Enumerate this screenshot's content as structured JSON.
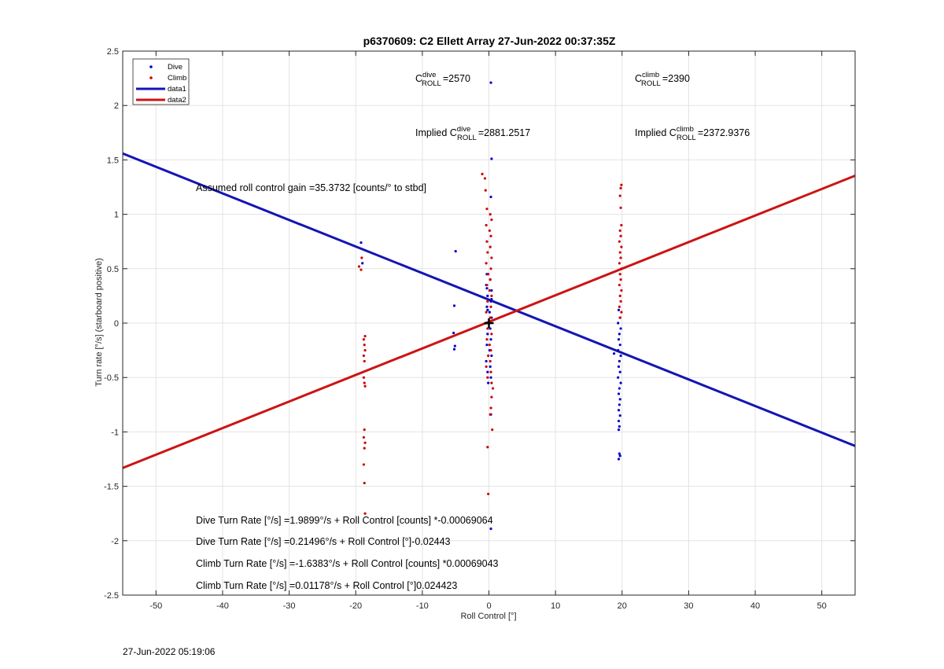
{
  "chart_data": {
    "type": "scatter",
    "title": "p6370609: C2 Ellett Array 27-Jun-2022 00:37:35Z",
    "xlabel": "Roll Control [°]",
    "ylabel": "Turn rate [°/s] (starboard positive)",
    "xlim": [
      -55,
      55
    ],
    "ylim": [
      -2.5,
      2.5
    ],
    "xticks": [
      -50,
      -40,
      -30,
      -20,
      -10,
      0,
      10,
      20,
      30,
      40,
      50
    ],
    "yticks": [
      -2.5,
      -2,
      -1.5,
      -1,
      -0.5,
      0,
      0.5,
      1,
      1.5,
      2,
      2.5
    ],
    "grid": true,
    "legend_position": "top-left",
    "colors": {
      "dive": "#0000cc",
      "climb": "#cc0000",
      "data1": "#1414b4",
      "data2": "#cc1414",
      "marker": "#000000"
    },
    "legend": [
      {
        "label": "Dive",
        "kind": "point",
        "color": "#0000cc"
      },
      {
        "label": "Climb",
        "kind": "point",
        "color": "#cc0000"
      },
      {
        "label": "data1",
        "kind": "line",
        "color": "#1414b4"
      },
      {
        "label": "data2",
        "kind": "line",
        "color": "#cc1414"
      }
    ],
    "lines": [
      {
        "name": "data1",
        "slope": -0.02443,
        "intercept": 0.21496
      },
      {
        "name": "data2",
        "slope": 0.024423,
        "intercept": 0.01178
      }
    ],
    "center_marker": {
      "x": 0,
      "y": 0
    },
    "series": [
      {
        "name": "Dive",
        "points": [
          [
            0.3,
            2.21
          ],
          [
            0.4,
            1.51
          ],
          [
            0.3,
            1.16
          ],
          [
            -19.2,
            0.74
          ],
          [
            -19.0,
            0.55
          ],
          [
            -5.0,
            0.66
          ],
          [
            -5.2,
            0.16
          ],
          [
            -5.3,
            -0.09
          ],
          [
            -5.1,
            -0.21
          ],
          [
            -5.2,
            -0.24
          ],
          [
            0.3,
            -0.84
          ],
          [
            0.3,
            -1.89
          ],
          [
            -0.3,
            0.45
          ],
          [
            0.2,
            0.4
          ],
          [
            -0.4,
            0.35
          ],
          [
            0.4,
            0.3
          ],
          [
            -0.2,
            0.25
          ],
          [
            0.3,
            0.2
          ],
          [
            -0.3,
            0.15
          ],
          [
            0.1,
            0.1
          ],
          [
            0.4,
            0.05
          ],
          [
            -0.4,
            0.0
          ],
          [
            0.2,
            -0.05
          ],
          [
            -0.2,
            -0.1
          ],
          [
            0.3,
            -0.15
          ],
          [
            -0.3,
            -0.2
          ],
          [
            0.1,
            -0.25
          ],
          [
            0.4,
            -0.3
          ],
          [
            -0.4,
            -0.35
          ],
          [
            0.2,
            -0.4
          ],
          [
            -0.2,
            -0.45
          ],
          [
            0.3,
            -0.5
          ],
          [
            -0.1,
            -0.55
          ],
          [
            -0.3,
            0.32
          ],
          [
            0.4,
            0.22
          ],
          [
            -0.2,
            0.12
          ],
          [
            19.5,
            0.12
          ],
          [
            19.7,
            0.05
          ],
          [
            19.4,
            0.0
          ],
          [
            19.8,
            -0.05
          ],
          [
            19.6,
            -0.1
          ],
          [
            19.5,
            -0.15
          ],
          [
            19.7,
            -0.2
          ],
          [
            19.4,
            -0.25
          ],
          [
            19.8,
            -0.3
          ],
          [
            19.6,
            -0.35
          ],
          [
            19.5,
            -0.4
          ],
          [
            19.7,
            -0.45
          ],
          [
            19.4,
            -0.5
          ],
          [
            19.8,
            -0.55
          ],
          [
            19.6,
            -0.6
          ],
          [
            19.5,
            -0.65
          ],
          [
            19.7,
            -0.7
          ],
          [
            19.6,
            -0.75
          ],
          [
            19.5,
            -0.8
          ],
          [
            19.7,
            -0.85
          ],
          [
            19.5,
            -0.9
          ],
          [
            19.6,
            -0.95
          ],
          [
            19.5,
            -0.98
          ],
          [
            19.6,
            -1.2
          ],
          [
            19.7,
            -1.22
          ],
          [
            19.5,
            -1.25
          ],
          [
            18.8,
            -0.28
          ]
        ]
      },
      {
        "name": "Climb",
        "points": [
          [
            -1.0,
            1.37
          ],
          [
            -0.6,
            1.33
          ],
          [
            -0.5,
            1.22
          ],
          [
            -0.3,
            1.05
          ],
          [
            0.2,
            1.0
          ],
          [
            0.4,
            0.95
          ],
          [
            -0.4,
            0.9
          ],
          [
            0.1,
            0.85
          ],
          [
            0.3,
            0.8
          ],
          [
            -0.3,
            0.75
          ],
          [
            0.2,
            0.7
          ],
          [
            -0.2,
            0.65
          ],
          [
            0.4,
            0.6
          ],
          [
            -0.4,
            0.55
          ],
          [
            0.3,
            0.5
          ],
          [
            -0.1,
            0.45
          ],
          [
            0.2,
            0.4
          ],
          [
            -0.3,
            0.35
          ],
          [
            0.1,
            0.3
          ],
          [
            0.4,
            0.25
          ],
          [
            -0.2,
            0.2
          ],
          [
            0.3,
            0.15
          ],
          [
            -0.4,
            0.1
          ],
          [
            0.2,
            0.05
          ],
          [
            -0.2,
            -0.05
          ],
          [
            0.4,
            -0.1
          ],
          [
            -0.3,
            -0.15
          ],
          [
            0.1,
            -0.2
          ],
          [
            0.3,
            -0.25
          ],
          [
            -0.1,
            -0.3
          ],
          [
            0.2,
            -0.35
          ],
          [
            -0.4,
            -0.4
          ],
          [
            0.3,
            -0.45
          ],
          [
            -0.2,
            -0.5
          ],
          [
            0.4,
            -0.55
          ],
          [
            0.6,
            -0.6
          ],
          [
            0.4,
            -0.68
          ],
          [
            0.3,
            -0.78
          ],
          [
            0.2,
            -0.84
          ],
          [
            0.5,
            -0.98
          ],
          [
            -0.2,
            -1.14
          ],
          [
            -0.1,
            -1.57
          ],
          [
            -19.1,
            0.6
          ],
          [
            -19.5,
            0.52
          ],
          [
            -19.2,
            0.49
          ],
          [
            -18.6,
            -0.12
          ],
          [
            -18.8,
            -0.15
          ],
          [
            -18.7,
            -0.2
          ],
          [
            -18.6,
            -0.25
          ],
          [
            -18.8,
            -0.3
          ],
          [
            -18.7,
            -0.35
          ],
          [
            -18.8,
            -0.5
          ],
          [
            -18.7,
            -0.55
          ],
          [
            -18.6,
            -0.58
          ],
          [
            -18.7,
            -0.98
          ],
          [
            -18.8,
            -1.05
          ],
          [
            -18.6,
            -1.1
          ],
          [
            -18.7,
            -1.15
          ],
          [
            -18.8,
            -1.3
          ],
          [
            -18.7,
            -1.47
          ],
          [
            -18.6,
            -1.75
          ],
          [
            19.9,
            1.27
          ],
          [
            19.8,
            1.24
          ],
          [
            19.7,
            1.17
          ],
          [
            19.8,
            1.06
          ],
          [
            19.9,
            0.9
          ],
          [
            19.7,
            0.85
          ],
          [
            19.8,
            0.8
          ],
          [
            19.6,
            0.75
          ],
          [
            19.9,
            0.7
          ],
          [
            19.7,
            0.65
          ],
          [
            19.8,
            0.6
          ],
          [
            19.6,
            0.55
          ],
          [
            19.9,
            0.5
          ],
          [
            19.7,
            0.45
          ],
          [
            19.8,
            0.4
          ],
          [
            19.6,
            0.35
          ],
          [
            19.9,
            0.3
          ],
          [
            19.7,
            0.25
          ],
          [
            19.8,
            0.2
          ],
          [
            19.6,
            0.15
          ],
          [
            19.9,
            0.1
          ],
          [
            19.7,
            0.05
          ]
        ]
      }
    ]
  },
  "annotations": {
    "c_dive_prefix": "C",
    "c_dive_sup": "dive",
    "c_dive_sub": "ROLL",
    "c_dive_value": "=2570",
    "c_climb_prefix": "C",
    "c_climb_sup": "climb",
    "c_climb_sub": "ROLL",
    "c_climb_value": "=2390",
    "implied_dive_prefix": "Implied C",
    "implied_dive_sup": "dive",
    "implied_dive_sub": "ROLL",
    "implied_dive_value": "=2881.2517",
    "implied_climb_prefix": "Implied C",
    "implied_climb_sup": "climb",
    "implied_climb_sub": "ROLL",
    "implied_climb_value": "=2372.9376",
    "gain": "Assumed roll control gain =35.3732 [counts/° to stbd]",
    "eq1": "Dive Turn Rate [°/s] =1.9899°/s + Roll Control [counts] *-0.00069064",
    "eq2": "Dive Turn Rate [°/s] =0.21496°/s + Roll Control [°]-0.02443",
    "eq3": "Climb Turn Rate [°/s] =-1.6383°/s + Roll Control [counts] *0.00069043",
    "eq4": "Climb Turn Rate [°/s] =0.01178°/s + Roll Control [°]0.024423"
  },
  "footer": {
    "timestamp": "27-Jun-2022 05:19:06"
  }
}
